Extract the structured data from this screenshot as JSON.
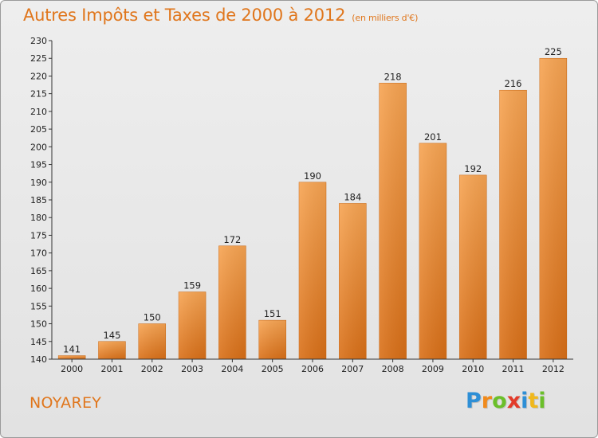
{
  "chart_data": {
    "type": "bar",
    "title": "Autres Impôts et Taxes de 2000 à 2012",
    "subtitle": "(en milliers d'€)",
    "categories": [
      "2000",
      "2001",
      "2002",
      "2003",
      "2004",
      "2005",
      "2006",
      "2007",
      "2008",
      "2009",
      "2010",
      "2011",
      "2012"
    ],
    "values": [
      141,
      145,
      150,
      159,
      172,
      151,
      190,
      184,
      218,
      201,
      192,
      216,
      225
    ],
    "ylim": [
      140,
      230
    ],
    "yticks": [
      140,
      145,
      150,
      155,
      160,
      165,
      170,
      175,
      180,
      185,
      190,
      195,
      200,
      205,
      210,
      215,
      220,
      225,
      230
    ],
    "xlabel": "",
    "ylabel": "",
    "grid": false,
    "bar_color_top": "#f7a452",
    "bar_color_bottom": "#d96f17"
  },
  "commune": "NOYAREY",
  "logo": {
    "text": "Proxiti",
    "letters": [
      {
        "ch": "P",
        "color": "#2e8fd6"
      },
      {
        "ch": "r",
        "color": "#f08a1c"
      },
      {
        "ch": "o",
        "color": "#6bbf2a"
      },
      {
        "ch": "x",
        "color": "#e23b2a"
      },
      {
        "ch": "i",
        "color": "#2e8fd6"
      },
      {
        "ch": "t",
        "color": "#f0b81c"
      },
      {
        "ch": "i",
        "color": "#6bbf2a"
      }
    ]
  }
}
